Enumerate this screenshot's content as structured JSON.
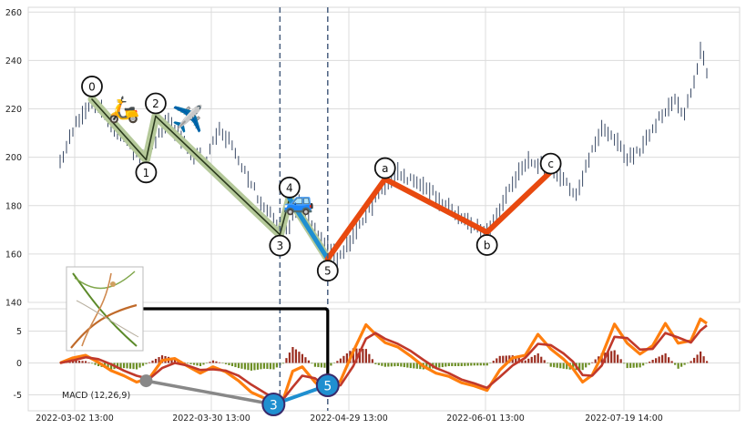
{
  "chart_data": [
    {
      "type": "ohlc",
      "title": "",
      "xlabel": "",
      "ylabel": "",
      "ylim": [
        140,
        262
      ],
      "y_ticks": [
        140,
        160,
        180,
        200,
        220,
        240,
        260
      ],
      "x_tick_labels": [
        "2022-03-02 13:00",
        "2022-03-30 13:00",
        "2022-04-29 13:00",
        "2022-06-01 13:00",
        "2022-07-19 14:00"
      ],
      "grid": true,
      "price_path": [
        [
          0,
          197
        ],
        [
          3,
          208
        ],
        [
          6,
          216
        ],
        [
          10,
          224
        ],
        [
          13,
          220
        ],
        [
          16,
          214
        ],
        [
          20,
          208
        ],
        [
          24,
          201
        ],
        [
          27,
          199
        ],
        [
          30,
          207
        ],
        [
          34,
          215
        ],
        [
          38,
          208
        ],
        [
          42,
          201
        ],
        [
          46,
          199
        ],
        [
          50,
          212
        ],
        [
          54,
          205
        ],
        [
          58,
          194
        ],
        [
          62,
          184
        ],
        [
          66,
          177
        ],
        [
          69,
          168
        ],
        [
          72,
          172
        ],
        [
          75,
          183
        ],
        [
          78,
          176
        ],
        [
          81,
          169
        ],
        [
          84,
          162
        ],
        [
          87,
          158
        ],
        [
          90,
          163
        ],
        [
          94,
          171
        ],
        [
          98,
          180
        ],
        [
          102,
          188
        ],
        [
          106,
          193
        ],
        [
          110,
          191
        ],
        [
          114,
          188
        ],
        [
          118,
          184
        ],
        [
          122,
          180
        ],
        [
          126,
          175
        ],
        [
          130,
          171
        ],
        [
          134,
          169
        ],
        [
          137,
          176
        ],
        [
          140,
          184
        ],
        [
          143,
          192
        ],
        [
          146,
          198
        ],
        [
          150,
          197
        ],
        [
          154,
          196
        ],
        [
          158,
          190
        ],
        [
          162,
          185
        ],
        [
          166,
          199
        ],
        [
          170,
          211
        ],
        [
          174,
          207
        ],
        [
          178,
          200
        ],
        [
          182,
          203
        ],
        [
          186,
          212
        ],
        [
          190,
          220
        ],
        [
          193,
          224
        ],
        [
          196,
          218
        ],
        [
          199,
          230
        ],
        [
          201,
          245
        ],
        [
          203,
          234
        ]
      ],
      "elliott_labels": [
        {
          "label": "0",
          "x": 10,
          "y": 224
        },
        {
          "label": "1",
          "x": 27,
          "y": 199
        },
        {
          "label": "2",
          "x": 30,
          "y": 217
        },
        {
          "label": "3",
          "x": 69,
          "y": 168
        },
        {
          "label": "4",
          "x": 72,
          "y": 183
        },
        {
          "label": "5",
          "x": 84,
          "y": 158
        },
        {
          "label": "a",
          "x": 102,
          "y": 191
        },
        {
          "label": "b",
          "x": 134,
          "y": 169
        },
        {
          "label": "c",
          "x": 154,
          "y": 194
        }
      ],
      "emoji_markers": [
        {
          "name": "scooter",
          "glyph": "🛵",
          "x": 20,
          "y": 220
        },
        {
          "name": "airplane",
          "glyph": "✈️",
          "x": 40,
          "y": 216
        },
        {
          "name": "car",
          "glyph": "🚙",
          "x": 75,
          "y": 182
        }
      ],
      "vlines_at_x": [
        69,
        84
      ]
    },
    {
      "type": "macd",
      "legend": "MACD (12,26,9)",
      "ylim": [
        -7.5,
        8.5
      ],
      "y_ticks": [
        -5,
        0,
        5
      ],
      "macd_line": [
        [
          0,
          0
        ],
        [
          4,
          0.8
        ],
        [
          8,
          1.2
        ],
        [
          12,
          0.1
        ],
        [
          16,
          -1.2
        ],
        [
          20,
          -2
        ],
        [
          24,
          -3
        ],
        [
          28,
          -2.4
        ],
        [
          32,
          0.4
        ],
        [
          36,
          0.7
        ],
        [
          40,
          -0.5
        ],
        [
          44,
          -1.6
        ],
        [
          48,
          -0.6
        ],
        [
          52,
          -1.4
        ],
        [
          56,
          -2.8
        ],
        [
          60,
          -4.6
        ],
        [
          64,
          -5.5
        ],
        [
          67,
          -6.5
        ],
        [
          70,
          -5.8
        ],
        [
          73,
          -1.3
        ],
        [
          76,
          -0.6
        ],
        [
          80,
          -3
        ],
        [
          84,
          -4.7
        ],
        [
          88,
          -2.8
        ],
        [
          92,
          1.8
        ],
        [
          96,
          6
        ],
        [
          99,
          4.5
        ],
        [
          102,
          3.2
        ],
        [
          106,
          2.5
        ],
        [
          110,
          1.1
        ],
        [
          114,
          -0.5
        ],
        [
          118,
          -1.6
        ],
        [
          122,
          -2.1
        ],
        [
          126,
          -3.1
        ],
        [
          130,
          -3.6
        ],
        [
          134,
          -4.3
        ],
        [
          138,
          -1.1
        ],
        [
          142,
          0.8
        ],
        [
          146,
          1.2
        ],
        [
          150,
          4.5
        ],
        [
          154,
          2.2
        ],
        [
          158,
          0.6
        ],
        [
          161,
          -0.9
        ],
        [
          164,
          -3
        ],
        [
          167,
          -1.9
        ],
        [
          170,
          1.1
        ],
        [
          174,
          6.1
        ],
        [
          178,
          3.1
        ],
        [
          182,
          1.4
        ],
        [
          186,
          2.7
        ],
        [
          190,
          6.2
        ],
        [
          194,
          3.1
        ],
        [
          198,
          3.5
        ],
        [
          201,
          6.9
        ],
        [
          203,
          6.2
        ]
      ],
      "signal_line": [
        [
          0,
          0
        ],
        [
          4,
          0.4
        ],
        [
          8,
          0.9
        ],
        [
          12,
          0.6
        ],
        [
          16,
          -0.2
        ],
        [
          20,
          -1.2
        ],
        [
          24,
          -2
        ],
        [
          28,
          -2.5
        ],
        [
          32,
          -0.8
        ],
        [
          36,
          0
        ],
        [
          40,
          -0.4
        ],
        [
          44,
          -1.1
        ],
        [
          48,
          -1
        ],
        [
          52,
          -1.2
        ],
        [
          56,
          -2
        ],
        [
          60,
          -3.4
        ],
        [
          64,
          -4.6
        ],
        [
          67,
          -5.5
        ],
        [
          70,
          -5.7
        ],
        [
          73,
          -3.8
        ],
        [
          76,
          -2
        ],
        [
          80,
          -2.4
        ],
        [
          84,
          -3.9
        ],
        [
          88,
          -3.5
        ],
        [
          92,
          -0.5
        ],
        [
          96,
          3.8
        ],
        [
          99,
          4.7
        ],
        [
          102,
          3.8
        ],
        [
          106,
          3
        ],
        [
          110,
          1.9
        ],
        [
          114,
          0.5
        ],
        [
          118,
          -0.8
        ],
        [
          122,
          -1.6
        ],
        [
          126,
          -2.6
        ],
        [
          130,
          -3.2
        ],
        [
          134,
          -3.9
        ],
        [
          138,
          -2.2
        ],
        [
          142,
          -0.4
        ],
        [
          146,
          0.8
        ],
        [
          150,
          3
        ],
        [
          154,
          2.8
        ],
        [
          158,
          1.5
        ],
        [
          161,
          0.2
        ],
        [
          164,
          -1.9
        ],
        [
          167,
          -2
        ],
        [
          170,
          -0.4
        ],
        [
          174,
          4.1
        ],
        [
          178,
          3.9
        ],
        [
          182,
          2.1
        ],
        [
          186,
          2.2
        ],
        [
          190,
          4.7
        ],
        [
          194,
          4
        ],
        [
          198,
          3.2
        ],
        [
          201,
          5.1
        ],
        [
          203,
          5.9
        ]
      ],
      "labels": [
        {
          "label": "3",
          "x": 67,
          "y": -6.5
        },
        {
          "label": "5",
          "x": 84,
          "y": -3.5
        }
      ],
      "grey_marker": {
        "x": 27,
        "y": -2.8
      },
      "colors": {
        "macd": "#ff7f0e",
        "signal": "#c0392b",
        "hist_pos": "#9b2d20",
        "hist_neg": "#6b8e23"
      }
    }
  ],
  "colors": {
    "wave_down": "#2b3a1e",
    "wave_highlight": "#b5c99a",
    "wave_last": "#1f8fd0",
    "abc": "#e8490f",
    "vline": "#4a6080",
    "connector": "#000000",
    "candle": "#3a4a66"
  }
}
